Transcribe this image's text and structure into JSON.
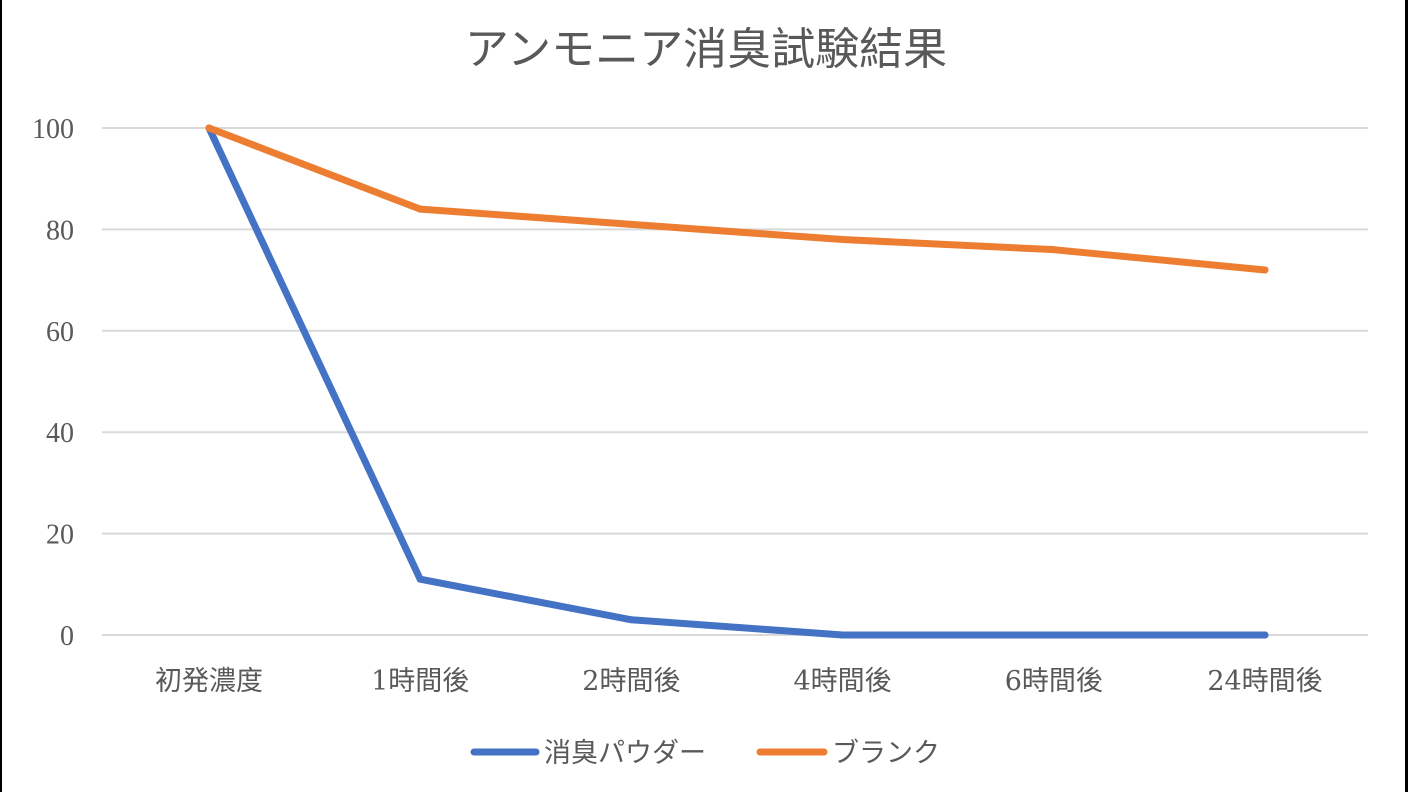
{
  "chart_data": {
    "type": "line",
    "title": "アンモニア消臭試験結果",
    "categories": [
      "初発濃度",
      "1時間後",
      "2時間後",
      "4時間後",
      "6時間後",
      "24時間後"
    ],
    "ylim": [
      0,
      100
    ],
    "yticks": [
      "0",
      "20",
      "40",
      "60",
      "80",
      "100"
    ],
    "grid": true,
    "legend_position": "bottom",
    "series": [
      {
        "name": "消臭パウダー",
        "color": "#4472C4",
        "values": [
          100,
          11,
          3,
          0,
          0,
          0
        ]
      },
      {
        "name": "ブランク",
        "color": "#ED7D31",
        "values": [
          100,
          84,
          81,
          78,
          76,
          72
        ]
      }
    ]
  }
}
